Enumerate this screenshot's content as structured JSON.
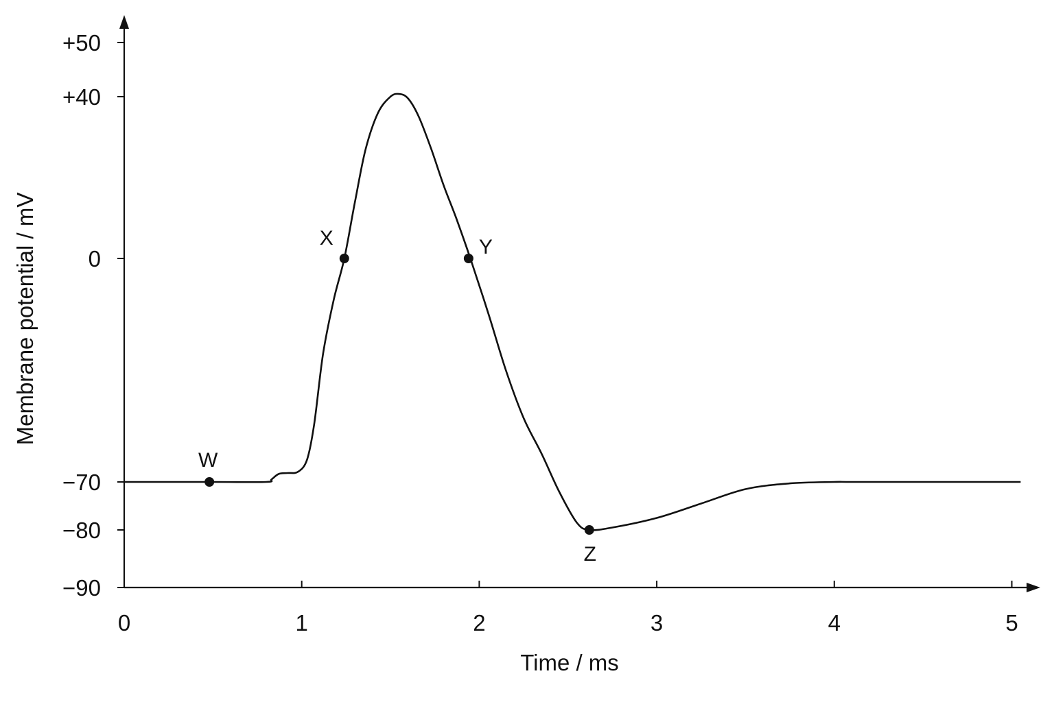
{
  "chart_data": {
    "type": "line",
    "xlabel": "Time / ms",
    "ylabel": "Membrane potential / mV",
    "xlim": [
      0,
      5.1
    ],
    "ylim": [
      -90,
      56
    ],
    "x_ticks": [
      {
        "value": 0,
        "label": "0"
      },
      {
        "value": 1,
        "label": "1"
      },
      {
        "value": 2,
        "label": "2"
      },
      {
        "value": 3,
        "label": "3"
      },
      {
        "value": 4,
        "label": "4"
      },
      {
        "value": 5,
        "label": "5"
      }
    ],
    "y_ticks": [
      {
        "value": 50,
        "label": "+50"
      },
      {
        "value": 40,
        "label": "+40"
      },
      {
        "value": 0,
        "label": "0"
      },
      {
        "value": -70,
        "label": "−70"
      },
      {
        "value": -80,
        "label": "−80"
      },
      {
        "value": -90,
        "label": "−90"
      }
    ],
    "series": [
      {
        "x": [
          0,
          0.5,
          0.8,
          0.83,
          0.87,
          0.92,
          0.98,
          1.03,
          1.07,
          1.12,
          1.18,
          1.24,
          1.3,
          1.36,
          1.43,
          1.5,
          1.55,
          1.6,
          1.66,
          1.73,
          1.8,
          1.87,
          1.95,
          2.05,
          2.15,
          2.25,
          2.35,
          2.45,
          2.55,
          2.62,
          2.75,
          3.0,
          3.25,
          3.5,
          3.75,
          4.0,
          4.1,
          4.5,
          5.05
        ],
        "y": [
          -70,
          -70,
          -70,
          -69.2,
          -67.5,
          -67.2,
          -66.8,
          -63,
          -52,
          -30,
          -13,
          0,
          14,
          27,
          36,
          40,
          40.5,
          39.5,
          35,
          27,
          18,
          10,
          0,
          -17,
          -35,
          -50,
          -61,
          -72,
          -78.5,
          -80,
          -79.5,
          -77.5,
          -74.5,
          -71.5,
          -70.3,
          -70,
          -70,
          -70,
          -70
        ]
      }
    ],
    "points": [
      {
        "label": "W",
        "x": 0.48,
        "y": -70
      },
      {
        "label": "X",
        "x": 1.24,
        "y": 0
      },
      {
        "label": "Y",
        "x": 1.94,
        "y": 0
      },
      {
        "label": "Z",
        "x": 2.62,
        "y": -80
      }
    ]
  }
}
